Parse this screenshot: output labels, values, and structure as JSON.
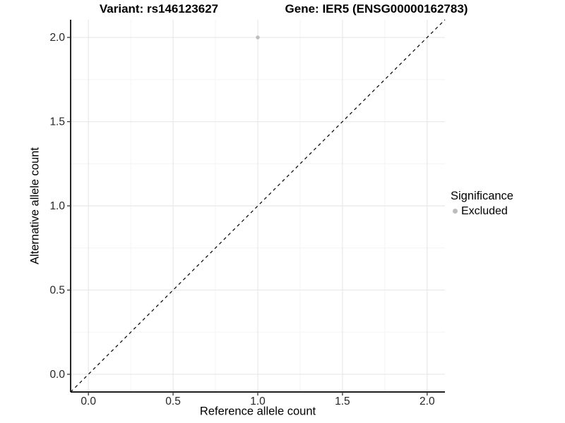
{
  "chart_data": {
    "type": "scatter",
    "titles": [
      "Variant: rs146123627",
      "Gene: IER5 (ENSG00000162783)"
    ],
    "xlabel": "Reference allele count",
    "ylabel": "Alternative allele count",
    "xlim": [
      -0.105,
      2.105
    ],
    "ylim": [
      -0.105,
      2.105
    ],
    "x_ticks": [
      0.0,
      0.5,
      1.0,
      1.5,
      2.0
    ],
    "y_ticks": [
      0.0,
      0.5,
      1.0,
      1.5,
      2.0
    ],
    "x_tick_labels": [
      "0.0",
      "0.5",
      "1.0",
      "1.5",
      "2.0"
    ],
    "y_tick_labels": [
      "0.0",
      "0.5",
      "1.0",
      "1.5",
      "2.0"
    ],
    "grid": {
      "major": true,
      "minor": true
    },
    "legend": {
      "title": "Significance",
      "position": "right",
      "items": [
        {
          "label": "Excluded",
          "color": "#bdbdbd"
        }
      ]
    },
    "series": [
      {
        "name": "Excluded",
        "marker": "circle",
        "color": "#bdbdbd",
        "points": [
          {
            "x": 1.0,
            "y": 2.0
          }
        ]
      }
    ],
    "reference_line": {
      "type": "identity",
      "slope": 1,
      "intercept": 0,
      "style": "dashed",
      "color": "#000000"
    },
    "colors": {
      "background": "#ffffff",
      "major_grid": "#e8e8e8",
      "minor_grid": "#f4f4f4",
      "axis_line": "#000000",
      "tick_text": "#262626"
    }
  }
}
